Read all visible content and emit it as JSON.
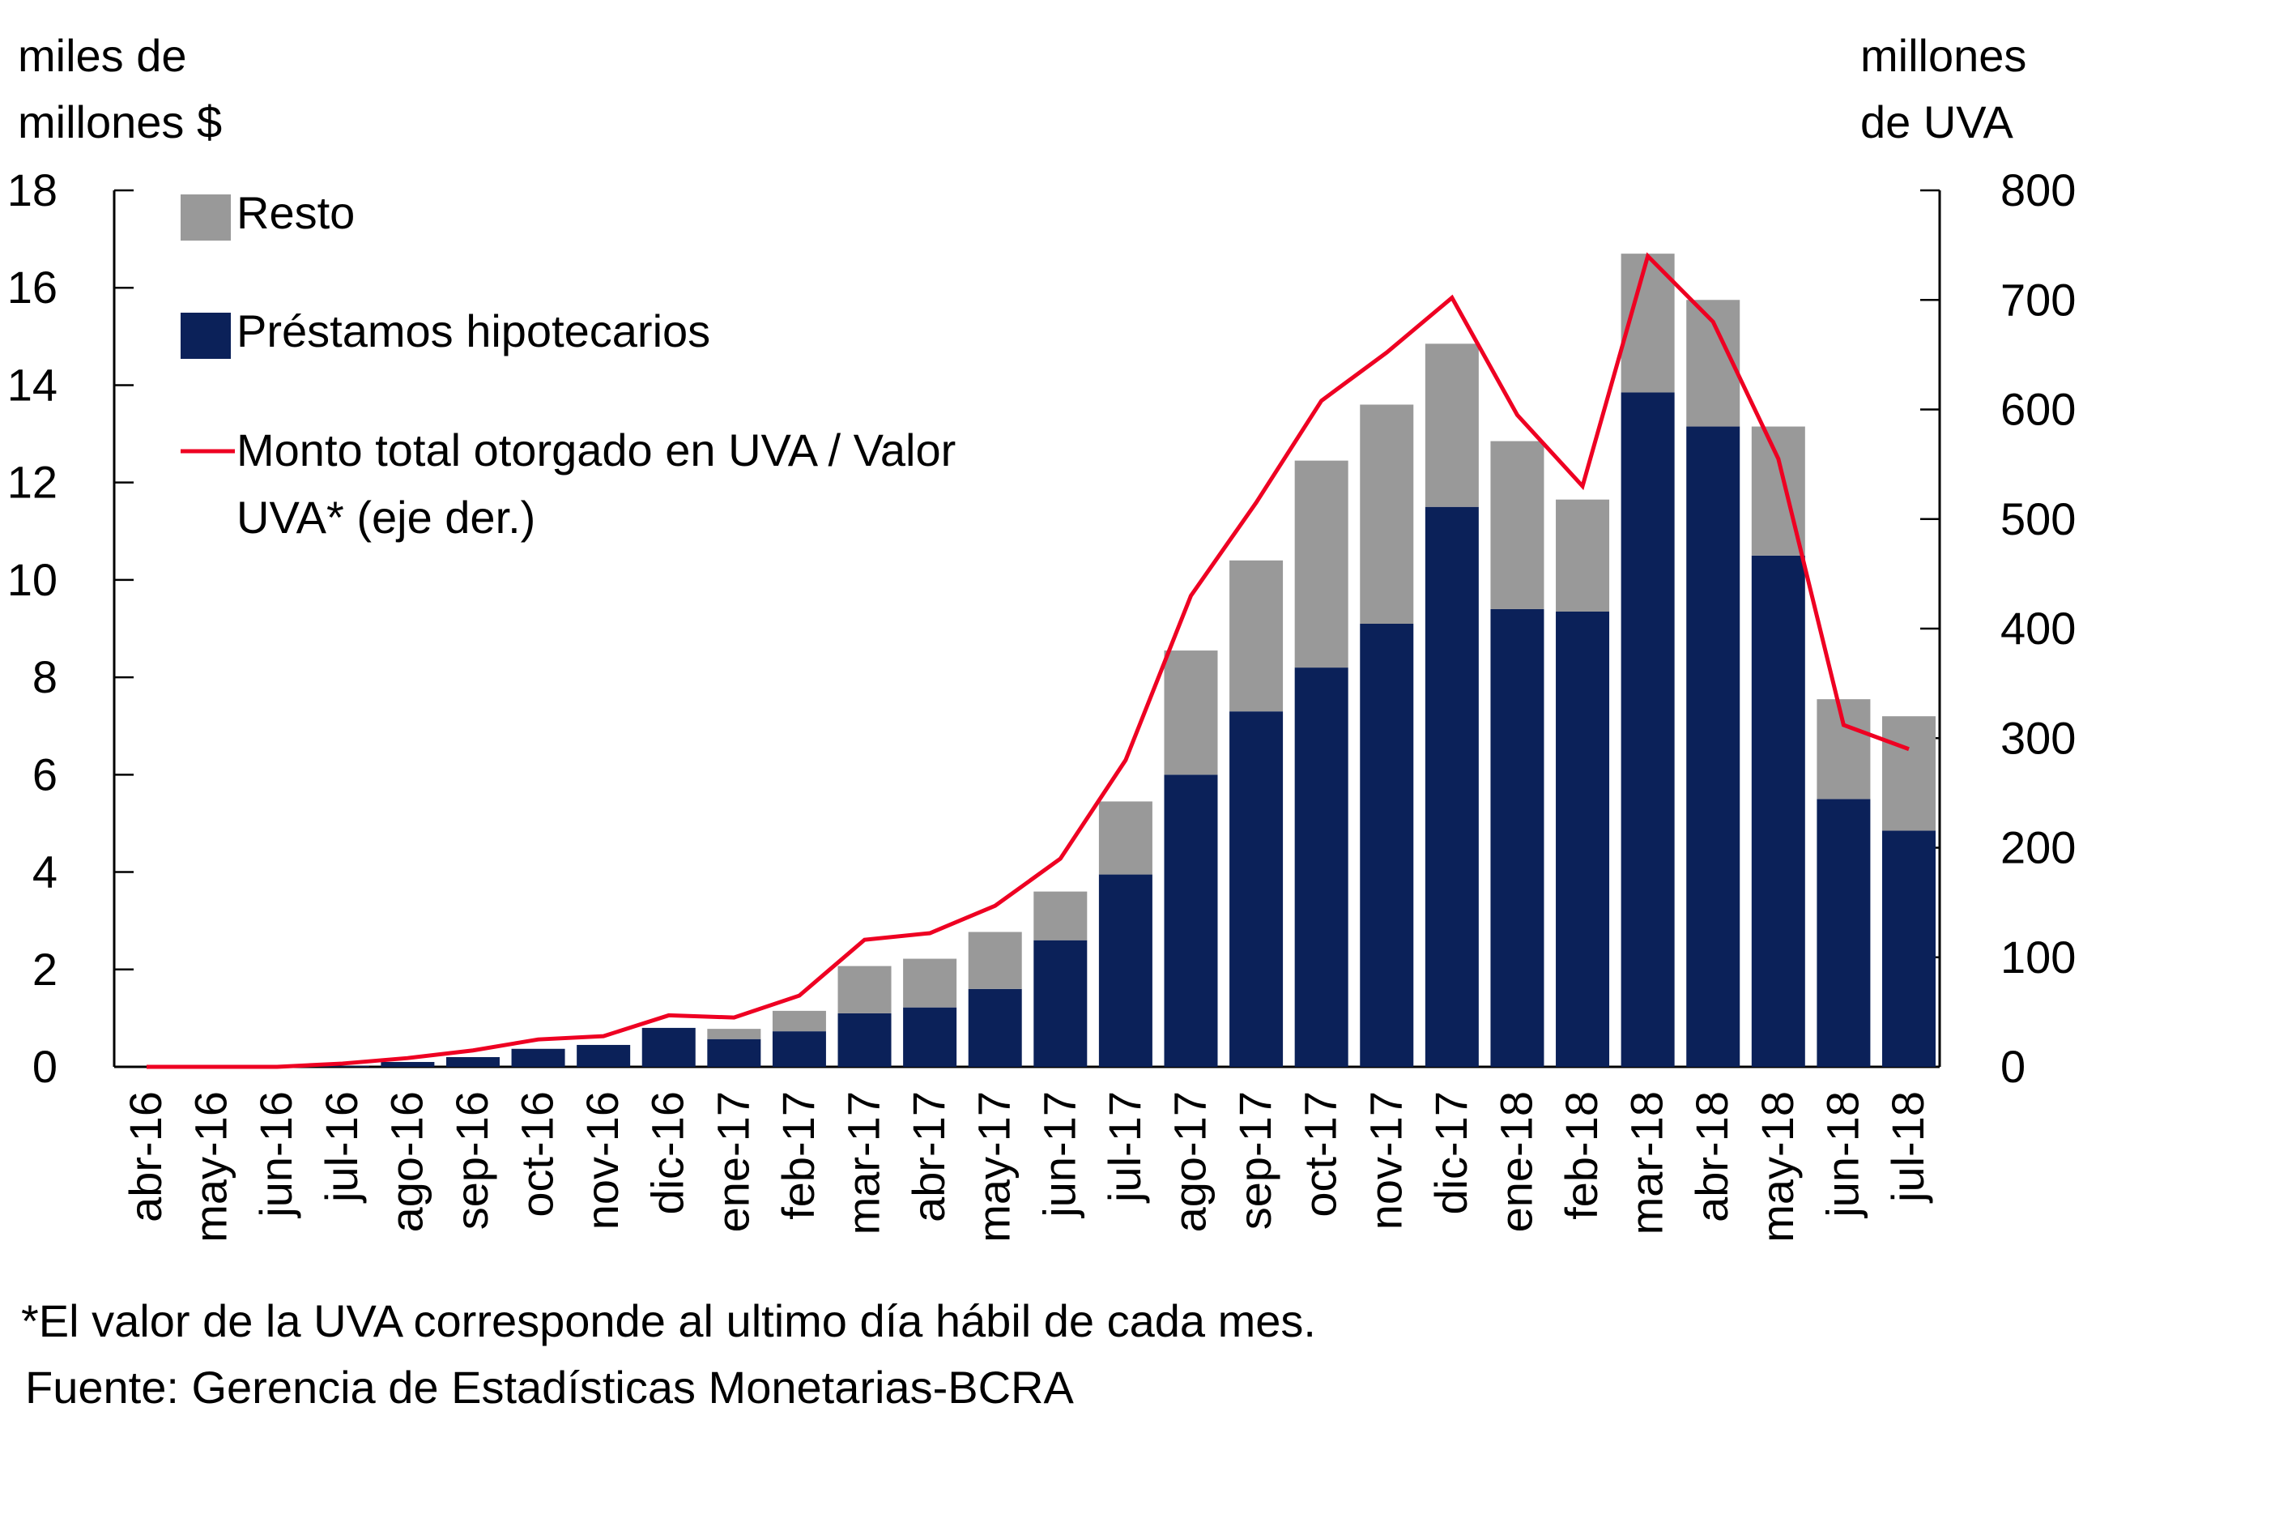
{
  "chart_data": {
    "type": "bar",
    "stacked": true,
    "categories": [
      "abr-16",
      "may-16",
      "jun-16",
      "jul-16",
      "ago-16",
      "sep-16",
      "oct-16",
      "nov-16",
      "dic-16",
      "ene-17",
      "feb-17",
      "mar-17",
      "abr-17",
      "may-17",
      "jun-17",
      "jul-17",
      "ago-17",
      "sep-17",
      "oct-17",
      "nov-17",
      "dic-17",
      "ene-18",
      "feb-18",
      "mar-18",
      "abr-18",
      "may-18",
      "jun-18",
      "jul-18"
    ],
    "series": [
      {
        "name": "Préstamos hipotecarios",
        "color": "#0b2159",
        "axis": "left",
        "values": [
          0.0,
          0.0,
          0.01,
          0.02,
          0.1,
          0.2,
          0.37,
          0.45,
          0.8,
          0.57,
          0.73,
          1.1,
          1.22,
          1.6,
          2.6,
          3.95,
          6.0,
          7.3,
          8.2,
          9.1,
          11.5,
          9.4,
          9.35,
          13.85,
          13.15,
          10.5,
          5.5,
          4.85
        ]
      },
      {
        "name": "Resto",
        "color": "#999999",
        "axis": "left",
        "values": [
          0.0,
          0.0,
          0.0,
          0.0,
          0.0,
          0.0,
          0.0,
          0.0,
          0.0,
          0.21,
          0.42,
          0.97,
          1.0,
          1.17,
          1.0,
          1.5,
          2.55,
          3.1,
          4.25,
          4.5,
          3.35,
          3.45,
          2.3,
          2.85,
          2.6,
          2.65,
          2.05,
          2.35
        ]
      }
    ],
    "line_series": {
      "name": "Monto total otorgado en UVA / Valor UVA* (eje der.)",
      "color": "#ee0022",
      "axis": "right",
      "values": [
        0,
        0,
        0,
        3,
        8,
        15,
        25,
        28,
        47,
        45,
        65,
        116,
        122,
        147,
        190,
        280,
        430,
        515,
        608,
        652,
        702,
        595,
        530,
        740,
        680,
        555,
        312,
        290
      ]
    },
    "ylabel_left": [
      "miles de",
      "millones $"
    ],
    "ylabel_right": [
      "millones",
      "de UVA"
    ],
    "ylim_left": [
      0,
      18
    ],
    "yticks_left": [
      "0",
      "2",
      "4",
      "6",
      "8",
      "10",
      "12",
      "14",
      "16",
      "18"
    ],
    "ylim_right": [
      0,
      800
    ],
    "yticks_right": [
      "0",
      "100",
      "200",
      "300",
      "400",
      "500",
      "600",
      "700",
      "800"
    ],
    "legend": [
      {
        "label": "Resto",
        "type": "box",
        "color": "#999999"
      },
      {
        "label": "Préstamos hipotecarios",
        "type": "box",
        "color": "#0b2159"
      },
      {
        "label": [
          "Monto total otorgado en UVA / Valor",
          "UVA* (eje der.)"
        ],
        "type": "line",
        "color": "#ee0022"
      }
    ],
    "legend_position": "top-left",
    "grid": false
  },
  "footnotes": [
    "*El valor de la UVA corresponde  al ultimo día hábil de cada mes.",
    "Fuente: Gerencia de Estadísticas Monetarias-BCRA"
  ]
}
